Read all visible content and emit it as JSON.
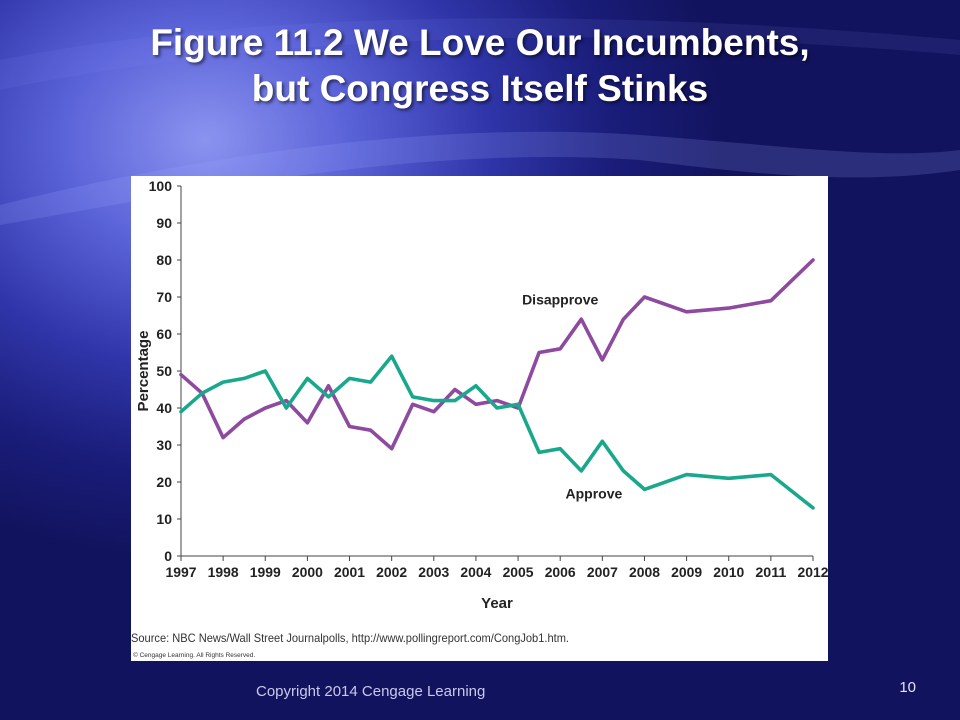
{
  "slide": {
    "title_line1": "Figure 11.2 We Love Our Incumbents,",
    "title_line2": "but Congress Itself Stinks",
    "footer": "Copyright 2014 Cengage Learning",
    "page_number": "10"
  },
  "colors": {
    "approve": "#1aa88c",
    "disapprove": "#8e4a9e"
  },
  "chart_data": {
    "type": "line",
    "xlabel": "Year",
    "ylabel": "Percentage",
    "ylim": [
      0,
      100
    ],
    "yticks": [
      0,
      10,
      20,
      30,
      40,
      50,
      60,
      70,
      80,
      90,
      100
    ],
    "xticks": [
      "1997",
      "1998",
      "1999",
      "2000",
      "2001",
      "2002",
      "2003",
      "2004",
      "2005",
      "2006",
      "2007",
      "2008",
      "2009",
      "2010",
      "2011",
      "2012"
    ],
    "grid": false,
    "legend": "none (series labeled on lines)",
    "source": "Source: NBC News/Wall Street Journalpolls, http://www.pollingreport.com/CongJob1.htm.",
    "copyright": "© Cengage Learning. All Rights Reserved.",
    "series": [
      {
        "name": "Disapprove",
        "x": [
          1997,
          1997.5,
          1998,
          1998.5,
          1999,
          1999.5,
          2000,
          2000.5,
          2001,
          2001.5,
          2002,
          2002.5,
          2003,
          2003.5,
          2004,
          2004.5,
          2005,
          2005.5,
          2006,
          2006.5,
          2007,
          2007.5,
          2008,
          2009,
          2010,
          2011,
          2012
        ],
        "values": [
          49,
          44,
          32,
          37,
          40,
          42,
          36,
          46,
          35,
          34,
          29,
          41,
          39,
          45,
          41,
          42,
          40,
          55,
          56,
          64,
          53,
          64,
          70,
          66,
          67,
          69,
          80
        ]
      },
      {
        "name": "Approve",
        "x": [
          1997,
          1997.5,
          1998,
          1998.5,
          1999,
          1999.5,
          2000,
          2000.5,
          2001,
          2001.5,
          2002,
          2002.5,
          2003,
          2003.5,
          2004,
          2004.5,
          2005,
          2005.5,
          2006,
          2006.5,
          2007,
          2007.5,
          2008,
          2009,
          2010,
          2011,
          2012
        ],
        "values": [
          39,
          44,
          47,
          48,
          50,
          40,
          48,
          43,
          48,
          47,
          54,
          43,
          42,
          42,
          46,
          40,
          41,
          28,
          29,
          23,
          31,
          23,
          18,
          22,
          21,
          22,
          13
        ]
      }
    ]
  }
}
